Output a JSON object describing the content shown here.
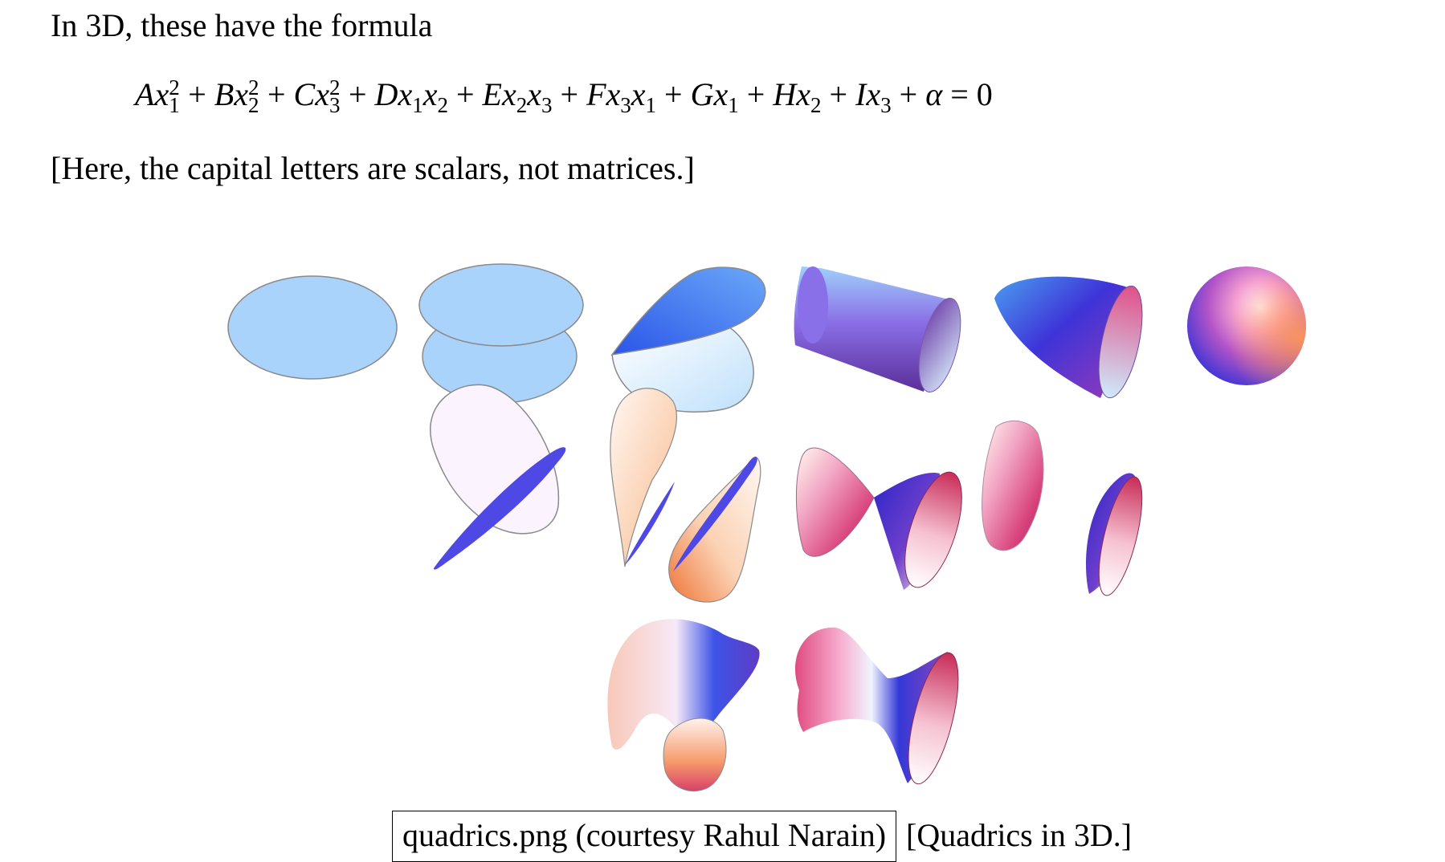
{
  "text": {
    "intro": "In 3D, these have the formula",
    "note": "[Here, the capital letters are scalars, not matrices.]"
  },
  "formula": {
    "terms": [
      {
        "coef": "A",
        "var": "x",
        "sub": "1",
        "sup": "2"
      },
      {
        "coef": "B",
        "var": "x",
        "sub": "2",
        "sup": "2"
      },
      {
        "coef": "C",
        "var": "x",
        "sub": "3",
        "sup": "2"
      },
      {
        "coef": "D",
        "vars": [
          [
            "x",
            "1"
          ],
          [
            "x",
            "2"
          ]
        ]
      },
      {
        "coef": "E",
        "vars": [
          [
            "x",
            "2"
          ],
          [
            "x",
            "3"
          ]
        ]
      },
      {
        "coef": "F",
        "vars": [
          [
            "x",
            "3"
          ],
          [
            "x",
            "1"
          ]
        ]
      },
      {
        "coef": "G",
        "vars": [
          [
            "x",
            "1"
          ]
        ]
      },
      {
        "coef": "H",
        "vars": [
          [
            "x",
            "2"
          ]
        ]
      },
      {
        "coef": "I",
        "vars": [
          [
            "x",
            "3"
          ]
        ]
      },
      {
        "coef": "α"
      }
    ],
    "operator": "+",
    "rhs": "= 0"
  },
  "figure": {
    "rows": [
      [
        "plane",
        "parallel-planes",
        "intersecting-planes",
        "elliptic-cylinder",
        "elliptic-paraboloid",
        "ellipsoid"
      ],
      [
        "parabolic-cylinder",
        "hyperbolic-cylinder",
        "elliptic-cone",
        "hyperboloid-two-sheets"
      ],
      [
        "hyperbolic-paraboloid",
        "hyperboloid-one-sheet"
      ]
    ],
    "colors": {
      "flat_fill": "#a9d3fb",
      "flat_stroke": "#8a8a8a",
      "deep_blue": "#4e48e4",
      "pink": "#e88ab0",
      "crimson": "#c8305c",
      "orange": "#f29a5c",
      "cream": "#fff5ee",
      "lavender": "#fbf3fe"
    }
  },
  "caption": {
    "box_text": "quadrics.png (courtesy Rahul Narain)",
    "tail_text": "[Quadrics in 3D.]"
  }
}
